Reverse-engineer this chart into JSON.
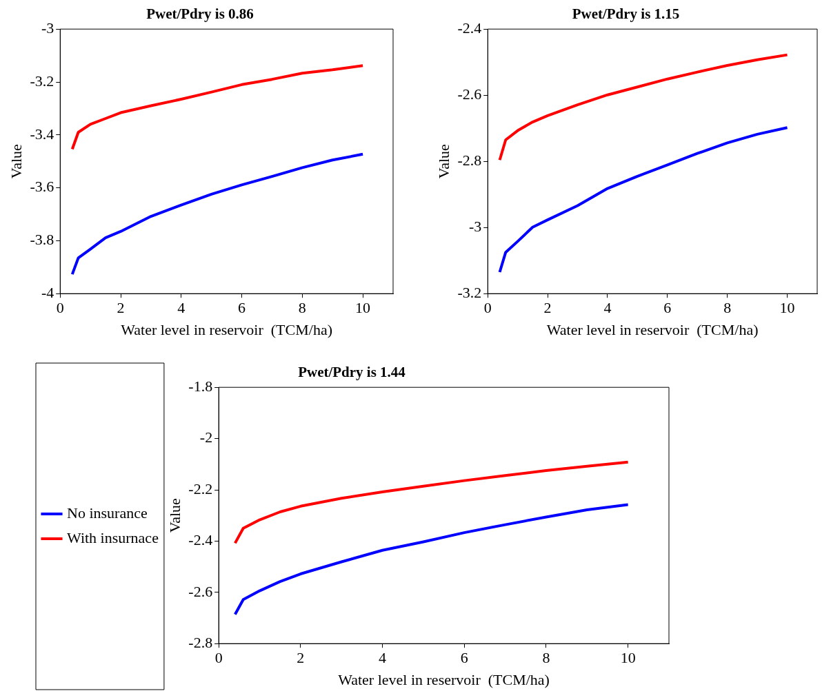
{
  "chart_data": [
    {
      "type": "line",
      "title": "Pwet/Pdry is 0.86",
      "xlabel": "Water level in reservoir  (TCM/ha)",
      "ylabel": "Value",
      "marker": "none",
      "legend": false,
      "x": [
        0.4,
        0.6,
        1,
        1.5,
        2,
        3,
        4,
        5,
        6,
        7,
        8,
        9,
        10
      ],
      "series": [
        {
          "color": "#0000ff",
          "values": [
            -3.927,
            -3.865,
            -3.832,
            -3.789,
            -3.765,
            -3.708,
            -3.665,
            -3.624,
            -3.589,
            -3.557,
            -3.524,
            -3.495,
            -3.473
          ]
        },
        {
          "color": "#ff0000",
          "values": [
            -3.454,
            -3.39,
            -3.36,
            -3.338,
            -3.316,
            -3.29,
            -3.265,
            -3.238,
            -3.21,
            -3.19,
            -3.167,
            -3.154,
            -3.138
          ]
        }
      ],
      "xlim": [
        0,
        11
      ],
      "xticks": [
        0,
        2,
        4,
        6,
        8,
        10
      ],
      "ylim": [
        -4,
        -3
      ],
      "yticks": [
        -4,
        -3.8,
        -3.6,
        -3.4,
        -3.2,
        -3
      ]
    },
    {
      "type": "line",
      "title": "Pwet/Pdry is 1.15",
      "xlabel": "Water level in reservoir  (TCM/ha)",
      "ylabel": "Value",
      "marker": "none",
      "legend": false,
      "x": [
        0.4,
        0.6,
        1,
        1.5,
        2,
        3,
        4,
        5,
        6,
        7,
        8,
        9,
        10
      ],
      "series": [
        {
          "color": "#0000ff",
          "values": [
            -3.135,
            -3.075,
            -3.042,
            -2.999,
            -2.977,
            -2.934,
            -2.882,
            -2.845,
            -2.811,
            -2.776,
            -2.744,
            -2.718,
            -2.698
          ]
        },
        {
          "color": "#ff0000",
          "values": [
            -2.796,
            -2.735,
            -2.707,
            -2.681,
            -2.662,
            -2.629,
            -2.599,
            -2.575,
            -2.551,
            -2.53,
            -2.51,
            -2.493,
            -2.478
          ]
        }
      ],
      "xlim": [
        0,
        11
      ],
      "xticks": [
        0,
        2,
        4,
        6,
        8,
        10
      ],
      "ylim": [
        -3.2,
        -2.4
      ],
      "yticks": [
        -3.2,
        -3,
        -2.8,
        -2.6,
        -2.4
      ]
    },
    {
      "type": "line",
      "title": "Pwet/Pdry is 1.44",
      "xlabel": "Water level in reservoir  (TCM/ha)",
      "ylabel": "Value",
      "marker": "none",
      "legend": "left",
      "x": [
        0.4,
        0.6,
        1,
        1.5,
        2,
        3,
        4,
        5,
        6,
        7,
        8,
        9,
        10
      ],
      "series": [
        {
          "name": "No insurance",
          "color": "#0000ff",
          "values": [
            -2.686,
            -2.628,
            -2.594,
            -2.558,
            -2.528,
            -2.481,
            -2.436,
            -2.403,
            -2.367,
            -2.336,
            -2.306,
            -2.278,
            -2.258
          ]
        },
        {
          "name": "With insurnace",
          "color": "#ff0000",
          "values": [
            -2.408,
            -2.35,
            -2.317,
            -2.286,
            -2.264,
            -2.233,
            -2.208,
            -2.186,
            -2.164,
            -2.144,
            -2.125,
            -2.108,
            -2.092
          ]
        }
      ],
      "xlim": [
        0,
        11
      ],
      "xticks": [
        0,
        2,
        4,
        6,
        8,
        10
      ],
      "ylim": [
        -2.8,
        -1.8
      ],
      "yticks": [
        -2.8,
        -2.6,
        -2.4,
        -2.2,
        -2,
        -1.8
      ]
    }
  ]
}
